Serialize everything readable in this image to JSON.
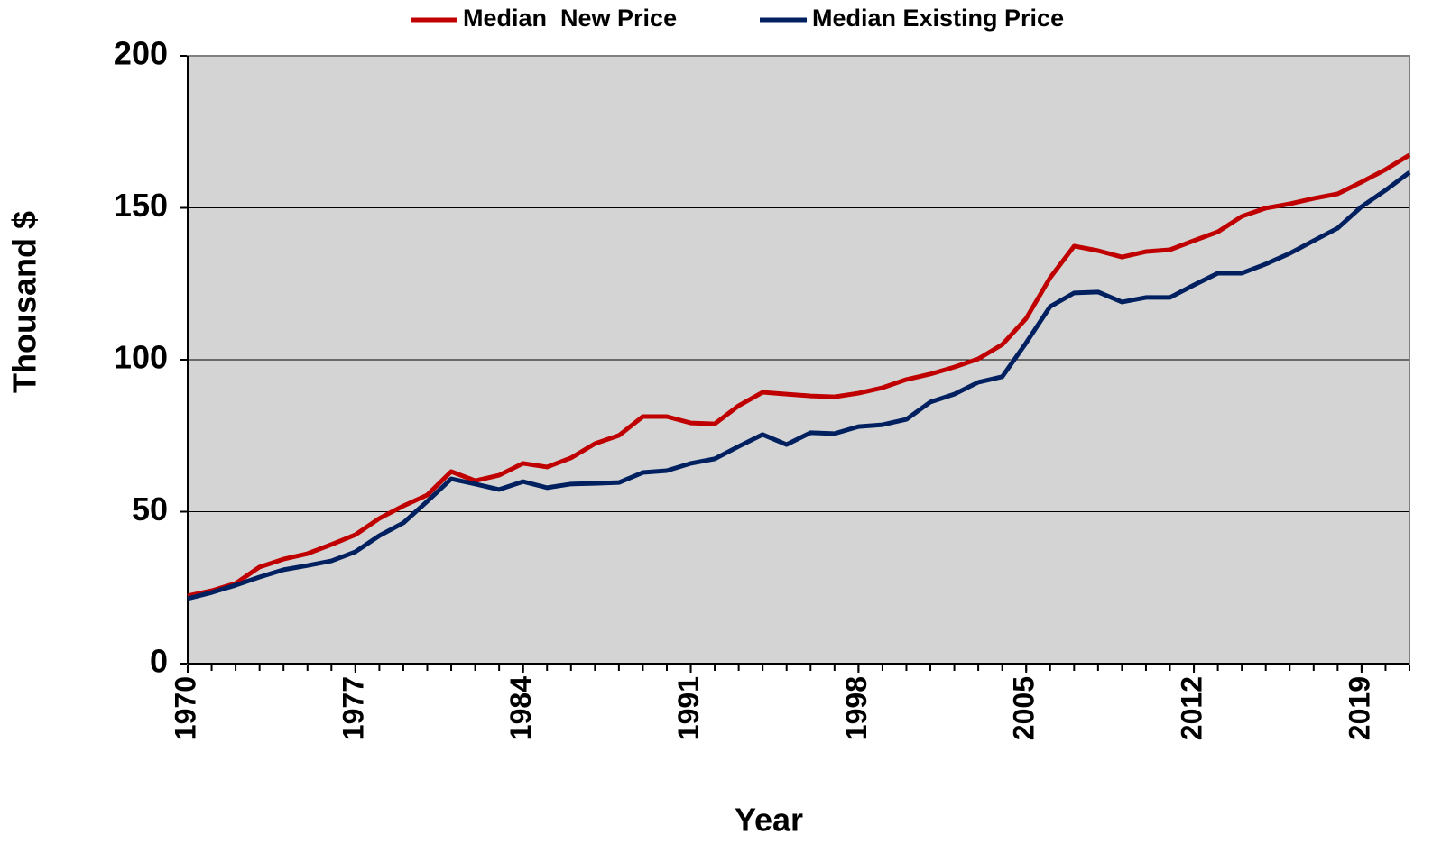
{
  "chart_data": {
    "type": "line",
    "xlabel": "Year",
    "ylabel": "Thousand $",
    "x": [
      1970,
      1971,
      1972,
      1973,
      1974,
      1975,
      1976,
      1977,
      1978,
      1979,
      1980,
      1981,
      1982,
      1983,
      1984,
      1985,
      1986,
      1987,
      1988,
      1989,
      1990,
      1991,
      1992,
      1993,
      1994,
      1995,
      1996,
      1997,
      1998,
      1999,
      2000,
      2001,
      2002,
      2003,
      2004,
      2005,
      2006,
      2007,
      2008,
      2009,
      2010,
      2011,
      2012,
      2013,
      2014,
      2015,
      2016,
      2017,
      2018,
      2019,
      2020,
      2021
    ],
    "series": [
      {
        "name": "Median  New Price",
        "color": "#c00000",
        "values": [
          22.3,
          24,
          26.4,
          31.8,
          34.4,
          36.2,
          39.2,
          42.4,
          47.8,
          51.9,
          55.5,
          63.2,
          60.2,
          62,
          65.9,
          64.7,
          67.7,
          72.4,
          75.1,
          81.3,
          81.3,
          79.2,
          78.9,
          84.9,
          89.3,
          88.7,
          88.1,
          87.8,
          89,
          90.8,
          93.5,
          95.3,
          97.6,
          100.3,
          105,
          113.6,
          127,
          137.4,
          135.9,
          133.8,
          135.6,
          136.2,
          139.2,
          142.1,
          147.2,
          149.9,
          151.3,
          153.1,
          154.6,
          158.5,
          162.6,
          167.4
        ]
      },
      {
        "name": "Median Existing Price",
        "color": "#002060",
        "values": [
          21.4,
          23.4,
          25.8,
          28.5,
          30.9,
          32.3,
          33.8,
          36.8,
          42.1,
          46.3,
          53.4,
          60.8,
          59.1,
          57.3,
          59.9,
          57.9,
          59.1,
          59.3,
          59.6,
          62.9,
          63.5,
          65.9,
          67.4,
          71.5,
          75.4,
          72.1,
          76,
          75.7,
          78,
          78.6,
          80.4,
          86.1,
          88.7,
          92.6,
          94.4,
          105.6,
          117.5,
          122,
          122.3,
          119,
          120.5,
          120.5,
          124.6,
          128.5,
          128.5,
          131.5,
          135,
          139.2,
          143.3,
          150.4,
          155.8,
          161.7
        ]
      }
    ],
    "xlim": [
      1970,
      2021
    ],
    "xticks": [
      1970,
      1977,
      1984,
      1991,
      1998,
      2005,
      2012,
      2019
    ],
    "ylim": [
      0,
      200
    ],
    "yticks": [
      0,
      50,
      100,
      150,
      200
    ],
    "grid": true,
    "legend": "top"
  }
}
